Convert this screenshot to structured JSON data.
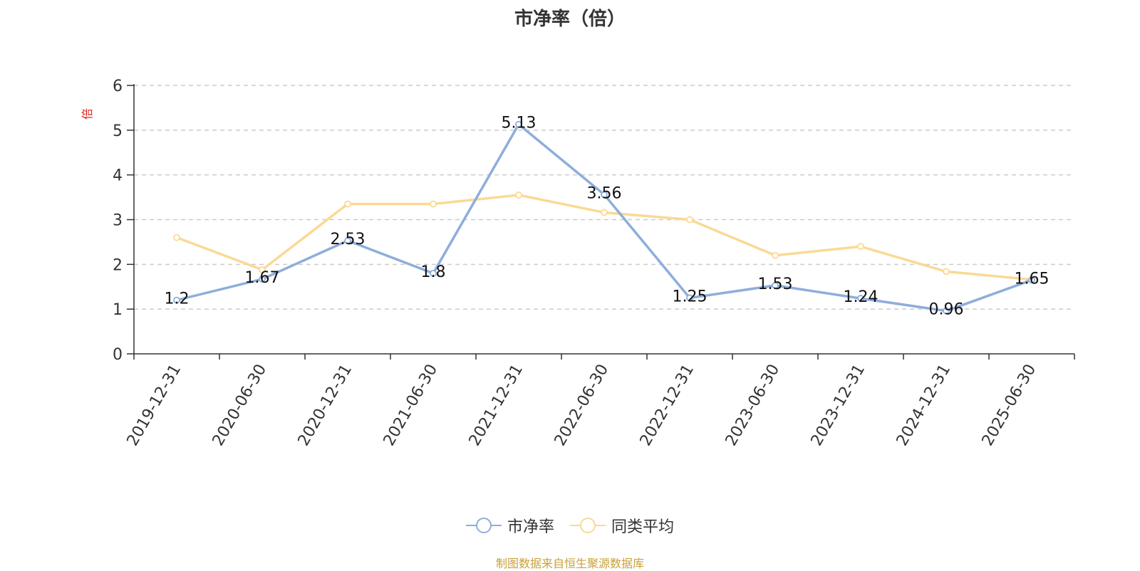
{
  "chart_data": {
    "type": "line",
    "title": "市净率（倍）",
    "ylabel": "倍",
    "categories": [
      "2019-12-31",
      "2020-06-30",
      "2020-12-31",
      "2021-06-30",
      "2021-12-31",
      "2022-06-30",
      "2022-12-31",
      "2023-06-30",
      "2023-12-31",
      "2024-12-31",
      "2025-06-30"
    ],
    "ylim": [
      0,
      6
    ],
    "yticks": [
      0,
      1,
      2,
      3,
      4,
      5,
      6
    ],
    "grid": true,
    "legend_position": "bottom",
    "series": [
      {
        "name": "市净率",
        "color": "#8eaedb",
        "values": [
          1.2,
          1.67,
          2.53,
          1.8,
          5.13,
          3.56,
          1.25,
          1.53,
          1.24,
          0.96,
          1.65
        ],
        "labels": [
          "1.2",
          "1.67",
          "2.53",
          "1.8",
          "5.13",
          "3.56",
          "1.25",
          "1.53",
          "1.24",
          "0.96",
          "1.65"
        ]
      },
      {
        "name": "同类平均",
        "color": "#fbd994",
        "values": [
          2.6,
          1.88,
          3.35,
          3.35,
          3.55,
          3.16,
          3.0,
          2.2,
          2.4,
          1.84,
          1.66
        ]
      }
    ]
  },
  "footer": "制图数据来自恒生聚源数据库"
}
